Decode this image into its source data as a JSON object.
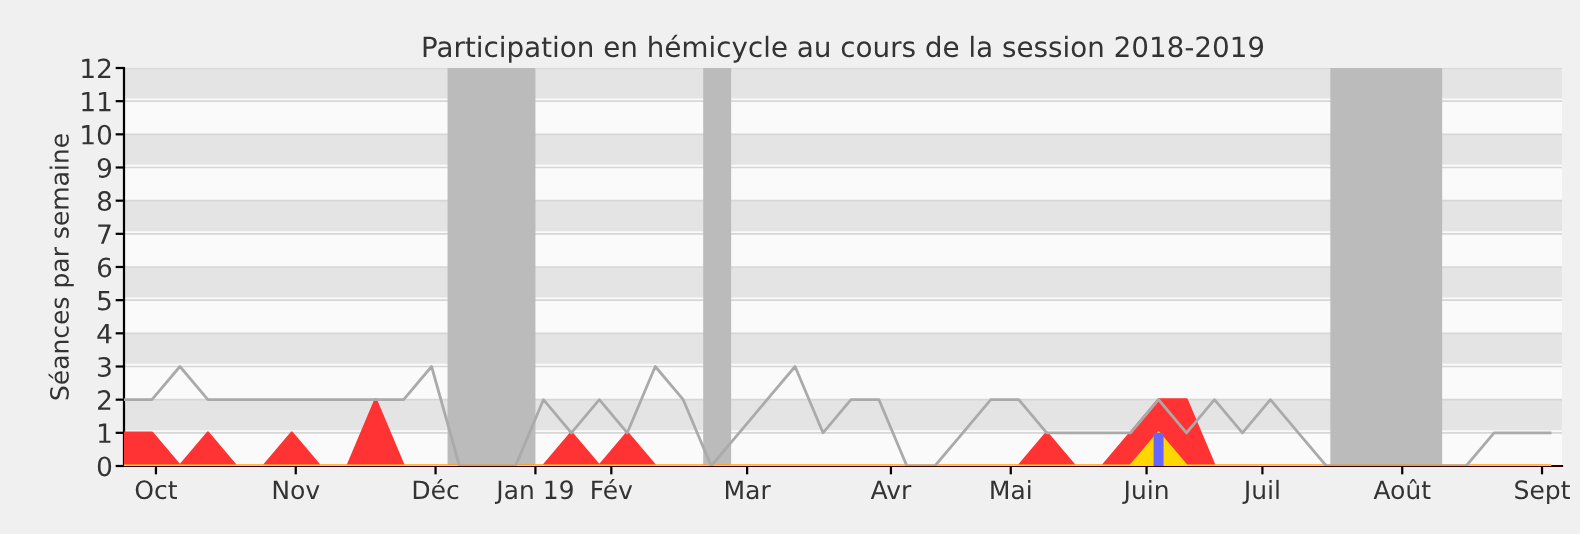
{
  "chart_data": {
    "type": "area",
    "title": "Participation en hémicycle au cours de la session 2018-2019",
    "ylabel": "Séances par semaine",
    "x": [
      "2018-10-01",
      "2018-10-08",
      "2018-10-15",
      "2018-10-22",
      "2018-10-29",
      "2018-11-05",
      "2018-11-12",
      "2018-11-19",
      "2018-11-26",
      "2018-12-03",
      "2018-12-10",
      "2018-12-17",
      "2018-12-24",
      "2018-12-31",
      "2019-01-07",
      "2019-01-14",
      "2019-01-21",
      "2019-01-28",
      "2019-02-04",
      "2019-02-11",
      "2019-02-18",
      "2019-02-25",
      "2019-03-04",
      "2019-03-11",
      "2019-03-18",
      "2019-03-25",
      "2019-04-01",
      "2019-04-08",
      "2019-04-15",
      "2019-04-22",
      "2019-04-29",
      "2019-05-06",
      "2019-05-13",
      "2019-05-20",
      "2019-05-27",
      "2019-06-03",
      "2019-06-10",
      "2019-06-17",
      "2019-06-24",
      "2019-07-01",
      "2019-07-08",
      "2019-07-15",
      "2019-07-22",
      "2019-07-29",
      "2019-08-05",
      "2019-08-12",
      "2019-08-19",
      "2019-08-26",
      "2019-09-02",
      "2019-09-09",
      "2019-09-16",
      "2019-09-23"
    ],
    "series": [
      {
        "type": "line",
        "color": "#aaaaaa",
        "values": [
          2,
          2,
          3,
          2,
          2,
          2,
          2,
          2,
          2,
          2,
          2,
          3,
          0,
          0,
          0,
          2,
          1,
          2,
          1,
          3,
          2,
          0,
          1,
          2,
          3,
          1,
          2,
          2,
          0,
          0,
          1,
          2,
          2,
          1,
          1,
          1,
          1,
          2,
          1,
          2,
          1,
          2,
          1,
          0,
          0,
          0,
          0,
          0,
          0,
          1,
          1,
          1
        ]
      },
      {
        "color": "#ff3333",
        "values": [
          1,
          1,
          0,
          1,
          0,
          0,
          1,
          0,
          0,
          2,
          0,
          0,
          0,
          0,
          0,
          0,
          1,
          0,
          1,
          0,
          0,
          0,
          0,
          0,
          0,
          0,
          0,
          0,
          0,
          0,
          0,
          0,
          0,
          1,
          0,
          0,
          1,
          2,
          2,
          0,
          0,
          0,
          0,
          0,
          0,
          0,
          0,
          0,
          0,
          0,
          0,
          0
        ]
      },
      {
        "type": "area",
        "color": "#ffd700",
        "values": [
          0,
          0,
          0,
          0,
          0,
          0,
          0,
          0,
          0,
          0,
          0,
          0,
          0,
          0,
          0,
          0,
          0,
          0,
          0,
          0,
          0,
          0,
          0,
          0,
          0,
          0,
          0,
          0,
          0,
          0,
          0,
          0,
          0,
          0,
          0,
          0,
          0,
          1,
          0,
          0,
          0,
          0,
          0,
          0,
          0,
          0,
          0,
          0,
          0,
          0,
          0,
          0
        ]
      },
      {
        "type": "bar",
        "color": "#6666ff",
        "x": [
          "2019-06-17"
        ],
        "values": [
          1
        ]
      }
    ],
    "bands": [
      {
        "axis": "x",
        "from": "2018-12-21",
        "to": "2019-01-12",
        "color": "#bbbbbb"
      },
      {
        "axis": "x",
        "from": "2019-02-23",
        "to": "2019-03-02",
        "color": "#bbbbbb"
      },
      {
        "axis": "x",
        "from": "2019-07-30",
        "to": "2019-08-27",
        "color": "#bbbbbb"
      }
    ],
    "xlim": [
      "2018-10-01",
      "2019-09-26"
    ],
    "ylim": [
      0,
      12
    ],
    "xticks": [
      {
        "value": "2018-10-09",
        "label": "Oct"
      },
      {
        "value": "2018-11-13",
        "label": "Nov"
      },
      {
        "value": "2018-12-18",
        "label": "Déc"
      },
      {
        "value": "2019-01-12",
        "label": "Jan 19"
      },
      {
        "value": "2019-01-31",
        "label": "Fév"
      },
      {
        "value": "2019-03-06",
        "label": "Mar"
      },
      {
        "value": "2019-04-11",
        "label": "Avr"
      },
      {
        "value": "2019-05-11",
        "label": "Mai"
      },
      {
        "value": "2019-06-14",
        "label": "Juin"
      },
      {
        "value": "2019-07-13",
        "label": "Juil"
      },
      {
        "value": "2019-08-17",
        "label": "Août"
      },
      {
        "value": "2019-09-21",
        "label": "Sept"
      }
    ],
    "yticks": [
      0,
      1,
      2,
      3,
      4,
      5,
      6,
      7,
      8,
      9,
      10,
      11,
      12
    ],
    "grid": "y"
  }
}
